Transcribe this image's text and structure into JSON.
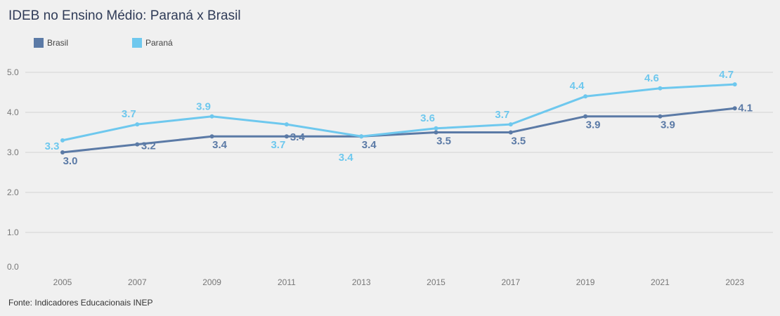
{
  "title": "IDEB no Ensino Médio: Paraná x Brasil",
  "source": "Fonte: Indicadores Educacionais INEP",
  "colors": {
    "Brasil": "#5b7aa6",
    "Paraná": "#6ec8ee",
    "grid": "#d4d4d4",
    "axis_text": "#777777"
  },
  "chart_data": {
    "type": "line",
    "title": "IDEB no Ensino Médio: Paraná x Brasil",
    "xlabel": "",
    "ylabel": "",
    "x": [
      "2005",
      "2007",
      "2009",
      "2011",
      "2013",
      "2015",
      "2017",
      "2019",
      "2021",
      "2023"
    ],
    "ylim": [
      0,
      5
    ],
    "yticks": [
      "0.0",
      "1.0",
      "2.0",
      "3.0",
      "4.0",
      "5.0"
    ],
    "grid": true,
    "legend_position": "top-left",
    "series": [
      {
        "name": "Brasil",
        "values": [
          3.0,
          3.2,
          3.4,
          3.4,
          3.4,
          3.5,
          3.5,
          3.9,
          3.9,
          4.1
        ],
        "labels": [
          "3.0",
          "3.2",
          "3.4",
          "3.4",
          "3.4",
          "3.5",
          "3.5",
          "3.9",
          "3.9",
          "4.1"
        ]
      },
      {
        "name": "Paraná",
        "values": [
          3.3,
          3.7,
          3.9,
          3.7,
          3.4,
          3.6,
          3.7,
          4.4,
          4.6,
          4.7
        ],
        "labels": [
          "3.3",
          "3.7",
          "3.9",
          "3.7",
          "3.4",
          "3.6",
          "3.7",
          "4.4",
          "4.6",
          "4.7"
        ]
      }
    ]
  }
}
